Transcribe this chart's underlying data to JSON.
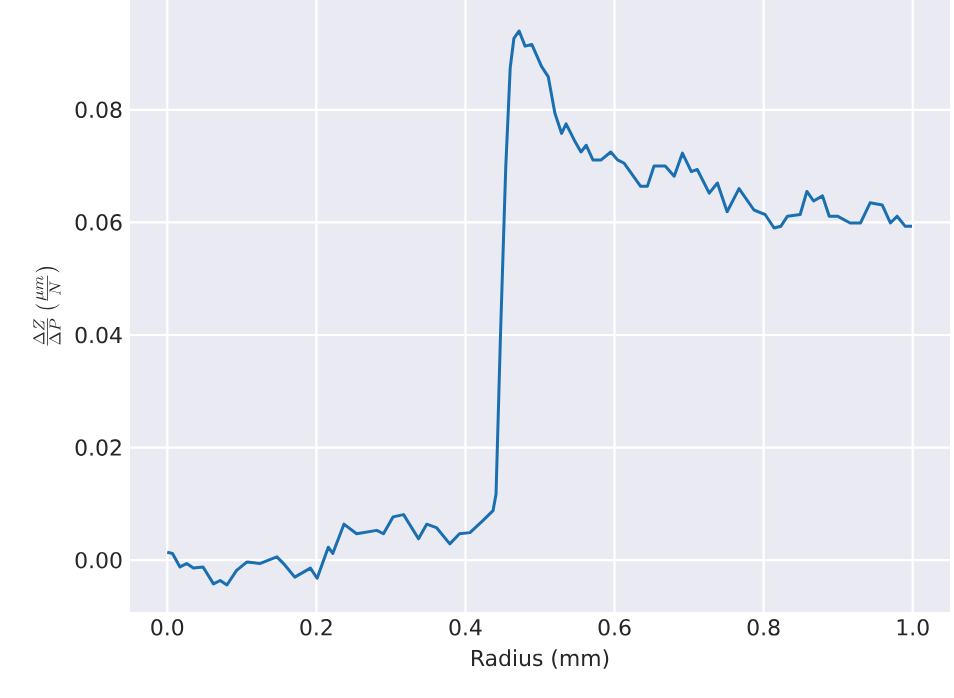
{
  "chart_data": {
    "type": "line",
    "xlabel": "Radius (mm)",
    "ylabel": "\\frac{\\Delta Z}{\\Delta P}\\left(\\frac{\\mu m}{N}\\right)",
    "xlim": [
      -0.05,
      1.05
    ],
    "ylim": [
      -0.0092,
      0.0995
    ],
    "xticks": [
      {
        "value": 0,
        "label": "0.0"
      },
      {
        "value": 0.2,
        "label": "0.2"
      },
      {
        "value": 0.4,
        "label": "0.4"
      },
      {
        "value": 0.6,
        "label": "0.6"
      },
      {
        "value": 0.8,
        "label": "0.8"
      },
      {
        "value": 1.0,
        "label": "1.0"
      }
    ],
    "yticks": [
      {
        "value": 0,
        "label": "0.00"
      },
      {
        "value": 0.02,
        "label": "0.02"
      },
      {
        "value": 0.04,
        "label": "0.04"
      },
      {
        "value": 0.06,
        "label": "0.06"
      },
      {
        "value": 0.08,
        "label": "0.08"
      }
    ],
    "grid": true,
    "series": [
      {
        "color": "#1a6fb0",
        "x": [
          0,
          0.007,
          0.017,
          0.026,
          0.035,
          0.048,
          0.062,
          0.071,
          0.08,
          0.093,
          0.107,
          0.124,
          0.147,
          0.156,
          0.171,
          0.192,
          0.201,
          0.216,
          0.222,
          0.237,
          0.254,
          0.281,
          0.29,
          0.303,
          0.317,
          0.337,
          0.348,
          0.361,
          0.379,
          0.392,
          0.406,
          0.423,
          0.437,
          0.441,
          0.447,
          0.454,
          0.46,
          0.465,
          0.472,
          0.48,
          0.489,
          0.502,
          0.511,
          0.52,
          0.529,
          0.535,
          0.546,
          0.555,
          0.562,
          0.571,
          0.582,
          0.595,
          0.604,
          0.613,
          0.635,
          0.644,
          0.653,
          0.668,
          0.68,
          0.691,
          0.703,
          0.711,
          0.727,
          0.738,
          0.751,
          0.767,
          0.787,
          0.802,
          0.814,
          0.823,
          0.832,
          0.849,
          0.858,
          0.867,
          0.879,
          0.888,
          0.899,
          0.916,
          0.93,
          0.943,
          0.959,
          0.97,
          0.979,
          0.99,
          0.999
        ],
        "values": [
          0.0014,
          0.0012,
          -0.0012,
          -0.0006,
          -0.0014,
          -0.0012,
          -0.0042,
          -0.0036,
          -0.0044,
          -0.0018,
          -0.0003,
          -0.0006,
          0.0006,
          -0.0006,
          -0.003,
          -0.0014,
          -0.0032,
          0.0023,
          0.0012,
          0.0064,
          0.0047,
          0.0053,
          0.0047,
          0.0077,
          0.0081,
          0.0038,
          0.0064,
          0.0058,
          0.0029,
          0.0047,
          0.0049,
          0.007,
          0.0088,
          0.0117,
          0.04,
          0.0696,
          0.0874,
          0.0927,
          0.094,
          0.0913,
          0.0916,
          0.0877,
          0.0859,
          0.0794,
          0.0758,
          0.0775,
          0.0746,
          0.0725,
          0.0737,
          0.0711,
          0.0711,
          0.0725,
          0.0711,
          0.0705,
          0.0664,
          0.0664,
          0.07,
          0.07,
          0.0682,
          0.0723,
          0.069,
          0.0694,
          0.0652,
          0.067,
          0.0619,
          0.066,
          0.0622,
          0.0614,
          0.059,
          0.0593,
          0.0611,
          0.0614,
          0.0655,
          0.0638,
          0.0647,
          0.0611,
          0.0611,
          0.0599,
          0.0599,
          0.0635,
          0.0631,
          0.0599,
          0.0611,
          0.0593,
          0.0593
        ]
      }
    ]
  }
}
